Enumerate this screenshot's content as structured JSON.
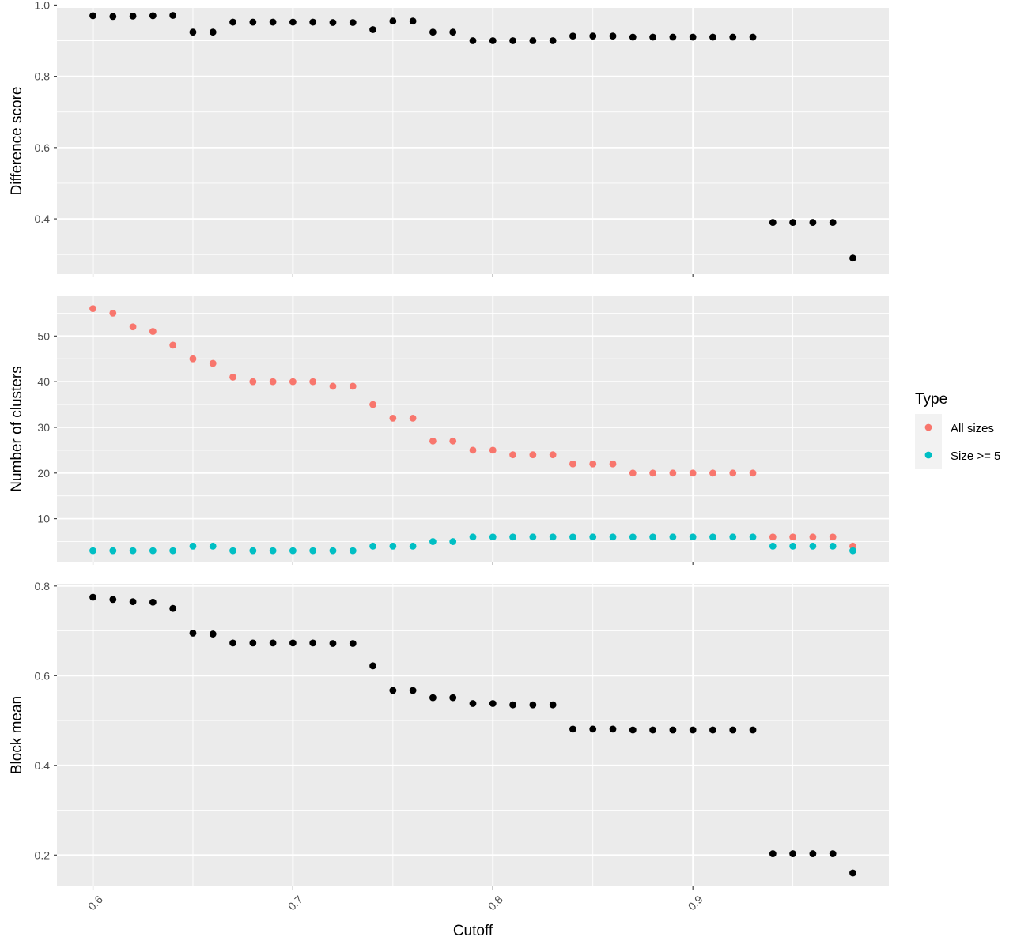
{
  "chart_data": {
    "type": "scatter",
    "xlabel": "Cutoff",
    "x_ticks": [
      "0.6",
      "0.7",
      "0.8",
      "0.9"
    ],
    "xlim": [
      0.582,
      0.998
    ],
    "x": [
      0.6,
      0.61,
      0.62,
      0.63,
      0.64,
      0.65,
      0.66,
      0.67,
      0.68,
      0.69,
      0.7,
      0.71,
      0.72,
      0.73,
      0.74,
      0.75,
      0.76,
      0.77,
      0.78,
      0.79,
      0.8,
      0.81,
      0.82,
      0.83,
      0.84,
      0.85,
      0.86,
      0.87,
      0.88,
      0.89,
      0.9,
      0.91,
      0.92,
      0.93,
      0.94,
      0.95,
      0.96,
      0.97,
      0.98
    ],
    "point_color": "#000000",
    "panel_background": "#ebebeb",
    "grid": true,
    "legend": {
      "title": "Type",
      "position": "right",
      "entries": [
        {
          "label": "All sizes",
          "color": "#F8766D"
        },
        {
          "label": "Size >= 5",
          "color": "#00BFC4"
        }
      ]
    },
    "panels": [
      {
        "ylabel": "Difference score",
        "ylim": [
          0.245,
          0.992
        ],
        "y_ticks": [
          "1.0",
          "0.8",
          "0.6",
          "0.4"
        ],
        "y_tick_values": [
          1.0,
          0.8,
          0.6,
          0.4
        ],
        "series": [
          {
            "values": [
              0.97,
              0.968,
              0.969,
              0.97,
              0.971,
              0.924,
              0.924,
              0.952,
              0.952,
              0.952,
              0.952,
              0.952,
              0.951,
              0.951,
              0.931,
              0.955,
              0.955,
              0.924,
              0.924,
              0.9,
              0.9,
              0.9,
              0.9,
              0.9,
              0.913,
              0.913,
              0.913,
              0.91,
              0.91,
              0.91,
              0.91,
              0.91,
              0.91,
              0.91,
              0.39,
              0.39,
              0.39,
              0.39,
              0.29
            ]
          }
        ]
      },
      {
        "ylabel": "Number of clusters",
        "ylim": [
          0.6,
          58.7
        ],
        "y_ticks": [
          "50",
          "40",
          "30",
          "20",
          "10"
        ],
        "y_tick_values": [
          50,
          40,
          30,
          20,
          10
        ],
        "series": [
          {
            "name": "All sizes",
            "color": "#F8766D",
            "values": [
              56,
              55,
              52,
              51,
              48,
              45,
              44,
              41,
              40,
              40,
              40,
              40,
              39,
              39,
              35,
              32,
              32,
              27,
              27,
              25,
              25,
              24,
              24,
              24,
              22,
              22,
              22,
              20,
              20,
              20,
              20,
              20,
              20,
              20,
              6,
              6,
              6,
              6,
              4
            ]
          },
          {
            "name": "Size >= 5",
            "color": "#00BFC4",
            "values": [
              3,
              3,
              3,
              3,
              3,
              4,
              4,
              3,
              3,
              3,
              3,
              3,
              3,
              3,
              4,
              4,
              4,
              5,
              5,
              6,
              6,
              6,
              6,
              6,
              6,
              6,
              6,
              6,
              6,
              6,
              6,
              6,
              6,
              6,
              4,
              4,
              4,
              4,
              3
            ]
          }
        ]
      },
      {
        "ylabel": "Block mean",
        "ylim": [
          0.13,
          0.805
        ],
        "y_ticks": [
          "0.8",
          "0.6",
          "0.4",
          "0.2"
        ],
        "y_tick_values": [
          0.8,
          0.6,
          0.4,
          0.2
        ],
        "series": [
          {
            "values": [
              0.775,
              0.77,
              0.765,
              0.764,
              0.75,
              0.695,
              0.693,
              0.673,
              0.673,
              0.673,
              0.673,
              0.673,
              0.672,
              0.672,
              0.622,
              0.567,
              0.567,
              0.551,
              0.551,
              0.538,
              0.538,
              0.535,
              0.535,
              0.535,
              0.481,
              0.481,
              0.481,
              0.479,
              0.479,
              0.479,
              0.479,
              0.479,
              0.479,
              0.479,
              0.203,
              0.203,
              0.203,
              0.203,
              0.16
            ]
          }
        ]
      }
    ]
  }
}
